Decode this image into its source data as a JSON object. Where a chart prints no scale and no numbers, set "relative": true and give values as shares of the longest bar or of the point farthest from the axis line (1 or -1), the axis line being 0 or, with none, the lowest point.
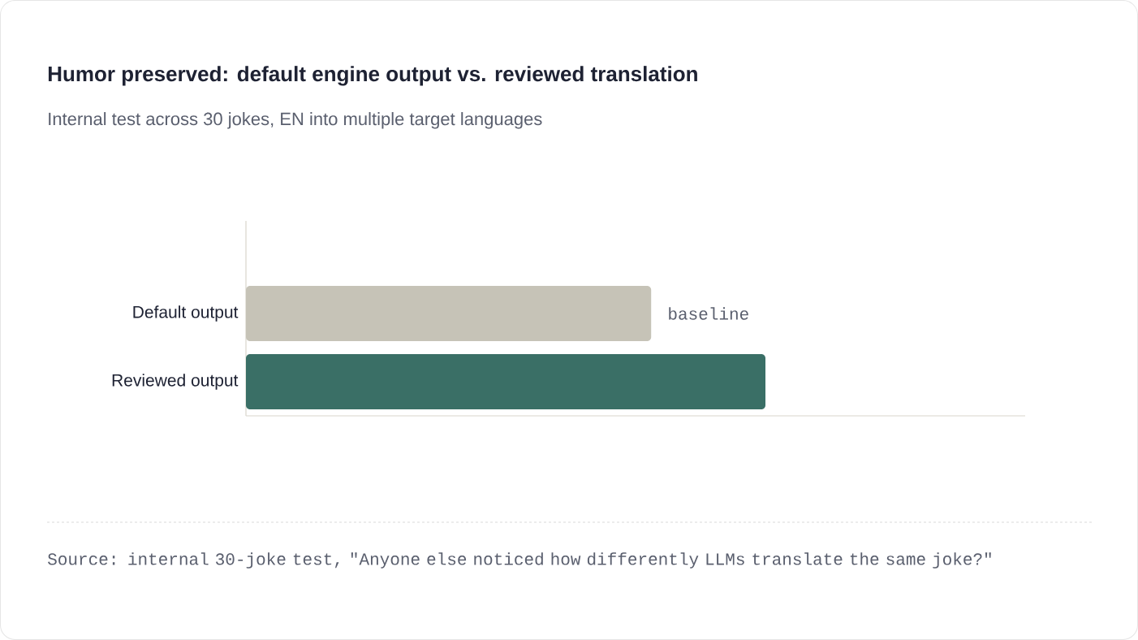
{
  "chart_data": {
    "type": "bar",
    "orientation": "horizontal",
    "relative": true,
    "title": "Humor preserved: default engine output vs. reviewed translation",
    "subtitle": "Internal test across 30 jokes, EN into multiple target languages",
    "categories": [
      "Default output",
      "Reviewed output"
    ],
    "values": [
      0.78,
      1
    ],
    "colors": [
      "#c6c3b7",
      "#3a6f66"
    ],
    "annotations": [
      {
        "text": "baseline",
        "x": 0.78,
        "y": "Default output"
      },
      "Source: internal 30-joke test, \"Anyone else noticed how differently LLMs translate the same joke?\""
    ]
  }
}
